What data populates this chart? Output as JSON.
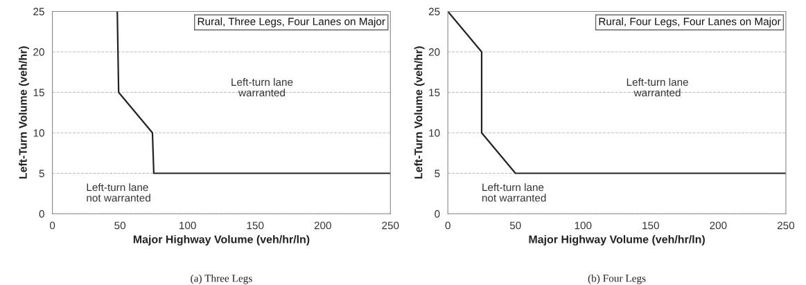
{
  "chart_data": [
    {
      "type": "line",
      "title": "Rural, Three Legs, Four Lanes on Major",
      "xlabel": "Major Highway Volume (veh/hr/ln)",
      "ylabel": "Left-Turn Volume (veh/hr)",
      "series": [
        {
          "color": "#222222",
          "x": [
            48,
            49,
            74,
            75,
            250
          ],
          "values": [
            25,
            15,
            10,
            5,
            5
          ]
        }
      ],
      "xlim": [
        0,
        250
      ],
      "xticks": [
        0,
        50,
        100,
        150,
        200,
        250
      ],
      "ylim": [
        0,
        25
      ],
      "yticks": [
        0,
        5,
        10,
        15,
        20,
        25
      ],
      "grid": "y",
      "line_style": "solid",
      "annotations": [
        "Left-turn lane\nwarranted",
        "Left-turn lane\nnot warranted",
        "(a) Three Legs"
      ]
    },
    {
      "type": "line",
      "title": "Rural, Four Legs, Four Lanes on Major",
      "xlabel": "Major Highway Volume (veh/hr/ln)",
      "ylabel": "Left-Turn Volume (veh/hr)",
      "series": [
        {
          "color": "#222222",
          "x": [
            0,
            25,
            25,
            50,
            250
          ],
          "values": [
            25,
            20,
            10,
            5,
            5
          ]
        }
      ],
      "xlim": [
        0,
        250
      ],
      "xticks": [
        0,
        50,
        100,
        150,
        200,
        250
      ],
      "ylim": [
        0,
        25
      ],
      "yticks": [
        0,
        5,
        10,
        15,
        20,
        25
      ],
      "grid": "y",
      "line_style": "solid",
      "annotations": [
        "Left-turn lane\nwarranted",
        "Left-turn lane\nnot warranted",
        "(b) Four Legs"
      ]
    }
  ]
}
